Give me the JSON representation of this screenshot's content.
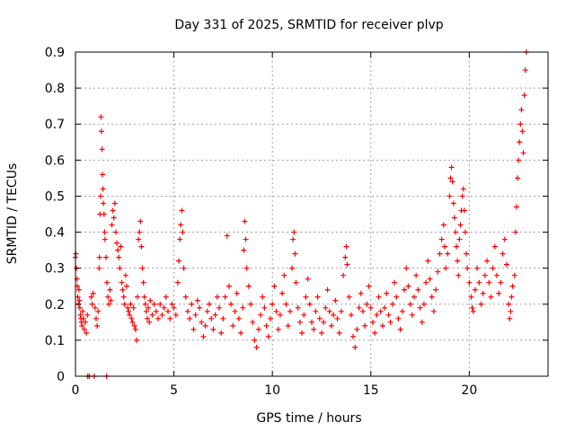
{
  "chart_data": {
    "type": "scatter",
    "title": "Day 331 of 2025, SRMTID for receiver plvp",
    "xlabel": "GPS time / hours",
    "ylabel": "SRMTID / TECUs",
    "xlim": [
      0,
      24
    ],
    "ylim": [
      0,
      0.9
    ],
    "grid": true,
    "marker": "+",
    "x_ticks": [
      0,
      5,
      10,
      15,
      20
    ],
    "x_tick_labels": [
      "0",
      "5",
      "10",
      "15",
      "20"
    ],
    "y_ticks": [
      0,
      0.1,
      0.2,
      0.3,
      0.4,
      0.5,
      0.6,
      0.7,
      0.8,
      0.9
    ],
    "y_tick_labels": [
      "0",
      "0.1",
      "0.2",
      "0.3",
      "0.4",
      "0.5",
      "0.6",
      "0.7",
      "0.8",
      "0.9"
    ],
    "series": [
      {
        "name": "SRMTID",
        "color": "#ff0000",
        "points": [
          [
            0.0,
            0.33
          ],
          [
            0.02,
            0.34
          ],
          [
            0.05,
            0.3
          ],
          [
            0.08,
            0.27
          ],
          [
            0.1,
            0.25
          ],
          [
            0.12,
            0.22
          ],
          [
            0.15,
            0.2
          ],
          [
            0.18,
            0.24
          ],
          [
            0.2,
            0.21
          ],
          [
            0.22,
            0.19
          ],
          [
            0.25,
            0.17
          ],
          [
            0.28,
            0.16
          ],
          [
            0.3,
            0.15
          ],
          [
            0.33,
            0.14
          ],
          [
            0.36,
            0.18
          ],
          [
            0.4,
            0.16
          ],
          [
            0.45,
            0.13
          ],
          [
            0.5,
            0.15
          ],
          [
            0.55,
            0.12
          ],
          [
            0.6,
            0.17
          ],
          [
            0.62,
            0.0
          ],
          [
            0.7,
            0.0
          ],
          [
            0.8,
            0.22
          ],
          [
            0.85,
            0.2
          ],
          [
            0.9,
            0.23
          ],
          [
            0.95,
            0.0
          ],
          [
            1.0,
            0.19
          ],
          [
            1.05,
            0.16
          ],
          [
            1.1,
            0.14
          ],
          [
            1.15,
            0.18
          ],
          [
            1.2,
            0.3
          ],
          [
            1.22,
            0.33
          ],
          [
            1.25,
            0.45
          ],
          [
            1.28,
            0.5
          ],
          [
            1.3,
            0.72
          ],
          [
            1.32,
            0.68
          ],
          [
            1.35,
            0.63
          ],
          [
            1.37,
            0.56
          ],
          [
            1.4,
            0.52
          ],
          [
            1.42,
            0.48
          ],
          [
            1.45,
            0.45
          ],
          [
            1.48,
            0.4
          ],
          [
            1.5,
            0.38
          ],
          [
            1.55,
            0.33
          ],
          [
            1.58,
            0.0
          ],
          [
            1.6,
            0.26
          ],
          [
            1.65,
            0.22
          ],
          [
            1.7,
            0.2
          ],
          [
            1.75,
            0.24
          ],
          [
            1.8,
            0.21
          ],
          [
            1.85,
            0.42
          ],
          [
            1.9,
            0.46
          ],
          [
            1.95,
            0.44
          ],
          [
            2.0,
            0.48
          ],
          [
            2.05,
            0.4
          ],
          [
            2.1,
            0.37
          ],
          [
            2.15,
            0.35
          ],
          [
            2.2,
            0.33
          ],
          [
            2.25,
            0.3
          ],
          [
            2.3,
            0.36
          ],
          [
            2.35,
            0.26
          ],
          [
            2.4,
            0.24
          ],
          [
            2.45,
            0.22
          ],
          [
            2.5,
            0.2
          ],
          [
            2.55,
            0.28
          ],
          [
            2.6,
            0.25
          ],
          [
            2.65,
            0.19
          ],
          [
            2.7,
            0.18
          ],
          [
            2.75,
            0.17
          ],
          [
            2.8,
            0.2
          ],
          [
            2.85,
            0.16
          ],
          [
            2.9,
            0.15
          ],
          [
            2.95,
            0.19
          ],
          [
            3.0,
            0.14
          ],
          [
            3.05,
            0.13
          ],
          [
            3.1,
            0.1
          ],
          [
            3.15,
            0.22
          ],
          [
            3.2,
            0.38
          ],
          [
            3.25,
            0.4
          ],
          [
            3.3,
            0.43
          ],
          [
            3.35,
            0.36
          ],
          [
            3.4,
            0.3
          ],
          [
            3.45,
            0.26
          ],
          [
            3.5,
            0.22
          ],
          [
            3.55,
            0.2
          ],
          [
            3.6,
            0.18
          ],
          [
            3.65,
            0.16
          ],
          [
            3.7,
            0.19
          ],
          [
            3.75,
            0.15
          ],
          [
            3.8,
            0.21
          ],
          [
            3.9,
            0.17
          ],
          [
            4.0,
            0.2
          ],
          [
            4.1,
            0.18
          ],
          [
            4.2,
            0.16
          ],
          [
            4.3,
            0.2
          ],
          [
            4.4,
            0.17
          ],
          [
            4.5,
            0.19
          ],
          [
            4.6,
            0.22
          ],
          [
            4.7,
            0.18
          ],
          [
            4.8,
            0.16
          ],
          [
            4.9,
            0.2
          ],
          [
            5.0,
            0.19
          ],
          [
            5.1,
            0.17
          ],
          [
            5.2,
            0.26
          ],
          [
            5.25,
            0.32
          ],
          [
            5.3,
            0.38
          ],
          [
            5.35,
            0.42
          ],
          [
            5.4,
            0.46
          ],
          [
            5.45,
            0.4
          ],
          [
            5.5,
            0.3
          ],
          [
            5.6,
            0.22
          ],
          [
            5.7,
            0.18
          ],
          [
            5.8,
            0.16
          ],
          [
            5.9,
            0.2
          ],
          [
            6.0,
            0.13
          ],
          [
            6.1,
            0.17
          ],
          [
            6.2,
            0.21
          ],
          [
            6.3,
            0.19
          ],
          [
            6.4,
            0.15
          ],
          [
            6.5,
            0.11
          ],
          [
            6.6,
            0.14
          ],
          [
            6.7,
            0.18
          ],
          [
            6.8,
            0.2
          ],
          [
            6.9,
            0.16
          ],
          [
            7.0,
            0.13
          ],
          [
            7.1,
            0.17
          ],
          [
            7.2,
            0.22
          ],
          [
            7.3,
            0.19
          ],
          [
            7.4,
            0.12
          ],
          [
            7.5,
            0.16
          ],
          [
            7.6,
            0.22
          ],
          [
            7.7,
            0.39
          ],
          [
            7.8,
            0.25
          ],
          [
            7.9,
            0.2
          ],
          [
            8.0,
            0.14
          ],
          [
            8.1,
            0.18
          ],
          [
            8.2,
            0.23
          ],
          [
            8.3,
            0.16
          ],
          [
            8.4,
            0.12
          ],
          [
            8.5,
            0.19
          ],
          [
            8.55,
            0.35
          ],
          [
            8.6,
            0.43
          ],
          [
            8.65,
            0.38
          ],
          [
            8.7,
            0.3
          ],
          [
            8.8,
            0.25
          ],
          [
            8.9,
            0.2
          ],
          [
            9.0,
            0.15
          ],
          [
            9.1,
            0.1
          ],
          [
            9.2,
            0.08
          ],
          [
            9.3,
            0.13
          ],
          [
            9.4,
            0.17
          ],
          [
            9.5,
            0.22
          ],
          [
            9.6,
            0.19
          ],
          [
            9.7,
            0.14
          ],
          [
            9.8,
            0.11
          ],
          [
            9.9,
            0.16
          ],
          [
            10.0,
            0.2
          ],
          [
            10.1,
            0.25
          ],
          [
            10.2,
            0.18
          ],
          [
            10.3,
            0.13
          ],
          [
            10.4,
            0.17
          ],
          [
            10.5,
            0.23
          ],
          [
            10.6,
            0.28
          ],
          [
            10.7,
            0.2
          ],
          [
            10.8,
            0.14
          ],
          [
            10.9,
            0.18
          ],
          [
            11.0,
            0.3
          ],
          [
            11.05,
            0.38
          ],
          [
            11.1,
            0.4
          ],
          [
            11.15,
            0.34
          ],
          [
            11.2,
            0.26
          ],
          [
            11.3,
            0.19
          ],
          [
            11.4,
            0.15
          ],
          [
            11.5,
            0.12
          ],
          [
            11.6,
            0.17
          ],
          [
            11.7,
            0.22
          ],
          [
            11.8,
            0.27
          ],
          [
            11.9,
            0.2
          ],
          [
            12.0,
            0.15
          ],
          [
            12.1,
            0.13
          ],
          [
            12.2,
            0.18
          ],
          [
            12.3,
            0.22
          ],
          [
            12.4,
            0.16
          ],
          [
            12.5,
            0.12
          ],
          [
            12.6,
            0.15
          ],
          [
            12.7,
            0.19
          ],
          [
            12.8,
            0.24
          ],
          [
            12.9,
            0.18
          ],
          [
            13.0,
            0.14
          ],
          [
            13.1,
            0.17
          ],
          [
            13.2,
            0.21
          ],
          [
            13.3,
            0.16
          ],
          [
            13.4,
            0.12
          ],
          [
            13.5,
            0.18
          ],
          [
            13.6,
            0.28
          ],
          [
            13.7,
            0.33
          ],
          [
            13.75,
            0.36
          ],
          [
            13.8,
            0.31
          ],
          [
            13.9,
            0.22
          ],
          [
            14.0,
            0.17
          ],
          [
            14.1,
            0.11
          ],
          [
            14.2,
            0.08
          ],
          [
            14.3,
            0.13
          ],
          [
            14.4,
            0.19
          ],
          [
            14.5,
            0.23
          ],
          [
            14.6,
            0.18
          ],
          [
            14.7,
            0.14
          ],
          [
            14.8,
            0.2
          ],
          [
            14.9,
            0.25
          ],
          [
            15.0,
            0.19
          ],
          [
            15.1,
            0.15
          ],
          [
            15.2,
            0.12
          ],
          [
            15.3,
            0.17
          ],
          [
            15.4,
            0.22
          ],
          [
            15.5,
            0.18
          ],
          [
            15.6,
            0.14
          ],
          [
            15.7,
            0.19
          ],
          [
            15.8,
            0.23
          ],
          [
            15.9,
            0.17
          ],
          [
            16.0,
            0.15
          ],
          [
            16.1,
            0.2
          ],
          [
            16.2,
            0.26
          ],
          [
            16.3,
            0.22
          ],
          [
            16.4,
            0.16
          ],
          [
            16.5,
            0.13
          ],
          [
            16.6,
            0.18
          ],
          [
            16.7,
            0.24
          ],
          [
            16.8,
            0.3
          ],
          [
            16.9,
            0.25
          ],
          [
            17.0,
            0.2
          ],
          [
            17.1,
            0.17
          ],
          [
            17.2,
            0.22
          ],
          [
            17.3,
            0.28
          ],
          [
            17.4,
            0.24
          ],
          [
            17.5,
            0.19
          ],
          [
            17.6,
            0.15
          ],
          [
            17.7,
            0.2
          ],
          [
            17.8,
            0.26
          ],
          [
            17.9,
            0.32
          ],
          [
            18.0,
            0.27
          ],
          [
            18.1,
            0.22
          ],
          [
            18.2,
            0.18
          ],
          [
            18.3,
            0.24
          ],
          [
            18.4,
            0.29
          ],
          [
            18.5,
            0.34
          ],
          [
            18.6,
            0.38
          ],
          [
            18.7,
            0.42
          ],
          [
            18.75,
            0.36
          ],
          [
            18.8,
            0.3
          ],
          [
            18.9,
            0.34
          ],
          [
            19.0,
            0.5
          ],
          [
            19.05,
            0.55
          ],
          [
            19.1,
            0.58
          ],
          [
            19.15,
            0.54
          ],
          [
            19.2,
            0.48
          ],
          [
            19.25,
            0.44
          ],
          [
            19.3,
            0.4
          ],
          [
            19.35,
            0.36
          ],
          [
            19.4,
            0.32
          ],
          [
            19.45,
            0.28
          ],
          [
            19.5,
            0.38
          ],
          [
            19.55,
            0.42
          ],
          [
            19.6,
            0.46
          ],
          [
            19.65,
            0.5
          ],
          [
            19.7,
            0.52
          ],
          [
            19.75,
            0.46
          ],
          [
            19.8,
            0.4
          ],
          [
            19.85,
            0.34
          ],
          [
            19.9,
            0.3
          ],
          [
            20.0,
            0.26
          ],
          [
            20.1,
            0.22
          ],
          [
            20.15,
            0.19
          ],
          [
            20.2,
            0.18
          ],
          [
            20.3,
            0.24
          ],
          [
            20.4,
            0.3
          ],
          [
            20.5,
            0.26
          ],
          [
            20.6,
            0.2
          ],
          [
            20.7,
            0.23
          ],
          [
            20.8,
            0.28
          ],
          [
            20.9,
            0.32
          ],
          [
            21.0,
            0.26
          ],
          [
            21.1,
            0.22
          ],
          [
            21.2,
            0.3
          ],
          [
            21.3,
            0.36
          ],
          [
            21.4,
            0.28
          ],
          [
            21.5,
            0.23
          ],
          [
            21.6,
            0.26
          ],
          [
            21.7,
            0.34
          ],
          [
            21.8,
            0.38
          ],
          [
            21.9,
            0.31
          ],
          [
            22.0,
            0.2
          ],
          [
            22.05,
            0.16
          ],
          [
            22.1,
            0.18
          ],
          [
            22.15,
            0.22
          ],
          [
            22.2,
            0.25
          ],
          [
            22.3,
            0.28
          ],
          [
            22.35,
            0.4
          ],
          [
            22.4,
            0.47
          ],
          [
            22.45,
            0.55
          ],
          [
            22.5,
            0.6
          ],
          [
            22.55,
            0.65
          ],
          [
            22.6,
            0.7
          ],
          [
            22.65,
            0.74
          ],
          [
            22.7,
            0.68
          ],
          [
            22.75,
            0.62
          ],
          [
            22.8,
            0.78
          ],
          [
            22.85,
            0.85
          ],
          [
            22.9,
            0.9
          ]
        ]
      }
    ]
  }
}
